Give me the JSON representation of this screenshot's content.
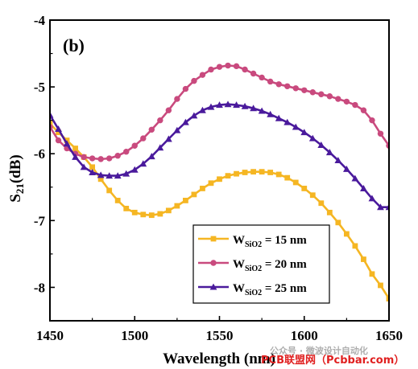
{
  "chart_data": {
    "type": "line",
    "panel_label": "(b)",
    "xlabel": "Wavelength (nm)",
    "ylabel": "S21(dB)",
    "ylabel_main": "S",
    "ylabel_sub": "21",
    "ylabel_rest": "(dB)",
    "xlim": [
      1450,
      1650
    ],
    "ylim": [
      -8.5,
      -4
    ],
    "xticks": [
      1450,
      1500,
      1550,
      1600,
      1650
    ],
    "yticks": [
      -4,
      -5,
      -6,
      -7,
      -8
    ],
    "grid": false,
    "legend_position": "bottom-right",
    "series": [
      {
        "name": "WSiO2 = 15 nm",
        "legend_main": "W",
        "legend_sub": "SiO2",
        "legend_rest": " = 15 nm",
        "color": "#F5B623",
        "marker": "square",
        "x": [
          1450,
          1455,
          1460,
          1465,
          1470,
          1475,
          1480,
          1485,
          1490,
          1495,
          1500,
          1505,
          1510,
          1515,
          1520,
          1525,
          1530,
          1535,
          1540,
          1545,
          1550,
          1555,
          1560,
          1565,
          1570,
          1575,
          1580,
          1585,
          1590,
          1595,
          1600,
          1605,
          1610,
          1615,
          1620,
          1625,
          1630,
          1635,
          1640,
          1645,
          1650
        ],
        "y": [
          -5.55,
          -5.68,
          -5.8,
          -5.92,
          -6.05,
          -6.2,
          -6.38,
          -6.55,
          -6.7,
          -6.82,
          -6.88,
          -6.91,
          -6.92,
          -6.9,
          -6.85,
          -6.78,
          -6.7,
          -6.61,
          -6.52,
          -6.44,
          -6.38,
          -6.33,
          -6.3,
          -6.28,
          -6.27,
          -6.27,
          -6.28,
          -6.31,
          -6.36,
          -6.43,
          -6.52,
          -6.62,
          -6.74,
          -6.88,
          -7.03,
          -7.2,
          -7.38,
          -7.58,
          -7.8,
          -7.97,
          -8.17
        ]
      },
      {
        "name": "WSiO2 = 20 nm",
        "legend_main": "W",
        "legend_sub": "SiO2",
        "legend_rest": " = 20 nm",
        "color": "#C94A7E",
        "marker": "circle",
        "x": [
          1450,
          1455,
          1460,
          1465,
          1470,
          1475,
          1480,
          1485,
          1490,
          1495,
          1500,
          1505,
          1510,
          1515,
          1520,
          1525,
          1530,
          1535,
          1540,
          1545,
          1550,
          1555,
          1560,
          1565,
          1570,
          1575,
          1580,
          1585,
          1590,
          1595,
          1600,
          1605,
          1610,
          1615,
          1620,
          1625,
          1630,
          1635,
          1640,
          1645,
          1650
        ],
        "y": [
          -5.6,
          -5.8,
          -5.92,
          -6.0,
          -6.05,
          -6.07,
          -6.08,
          -6.07,
          -6.03,
          -5.97,
          -5.88,
          -5.77,
          -5.64,
          -5.5,
          -5.35,
          -5.18,
          -5.03,
          -4.91,
          -4.82,
          -4.74,
          -4.7,
          -4.68,
          -4.69,
          -4.74,
          -4.8,
          -4.86,
          -4.92,
          -4.96,
          -4.99,
          -5.02,
          -5.05,
          -5.08,
          -5.11,
          -5.14,
          -5.18,
          -5.22,
          -5.27,
          -5.35,
          -5.5,
          -5.7,
          -5.88
        ]
      },
      {
        "name": "WSiO2 = 25 nm",
        "legend_main": "W",
        "legend_sub": "SiO2",
        "legend_rest": " = 25 nm",
        "color": "#4A1A9C",
        "marker": "triangle",
        "x": [
          1450,
          1455,
          1460,
          1465,
          1470,
          1475,
          1480,
          1485,
          1490,
          1495,
          1500,
          1505,
          1510,
          1515,
          1520,
          1525,
          1530,
          1535,
          1540,
          1545,
          1550,
          1555,
          1560,
          1565,
          1570,
          1575,
          1580,
          1585,
          1590,
          1595,
          1600,
          1605,
          1610,
          1615,
          1620,
          1625,
          1630,
          1635,
          1640,
          1645,
          1650
        ],
        "y": [
          -5.42,
          -5.63,
          -5.85,
          -6.05,
          -6.2,
          -6.28,
          -6.32,
          -6.33,
          -6.33,
          -6.3,
          -6.24,
          -6.15,
          -6.04,
          -5.91,
          -5.78,
          -5.65,
          -5.53,
          -5.43,
          -5.35,
          -5.3,
          -5.27,
          -5.26,
          -5.27,
          -5.29,
          -5.32,
          -5.36,
          -5.41,
          -5.47,
          -5.53,
          -5.6,
          -5.68,
          -5.77,
          -5.87,
          -5.98,
          -6.1,
          -6.23,
          -6.37,
          -6.52,
          -6.67,
          -6.8,
          -6.8
        ]
      }
    ]
  },
  "watermark": {
    "line1": "公众号 · 微波设计自动化",
    "line2": "PCB联盟网（Pcbbar.com）"
  }
}
